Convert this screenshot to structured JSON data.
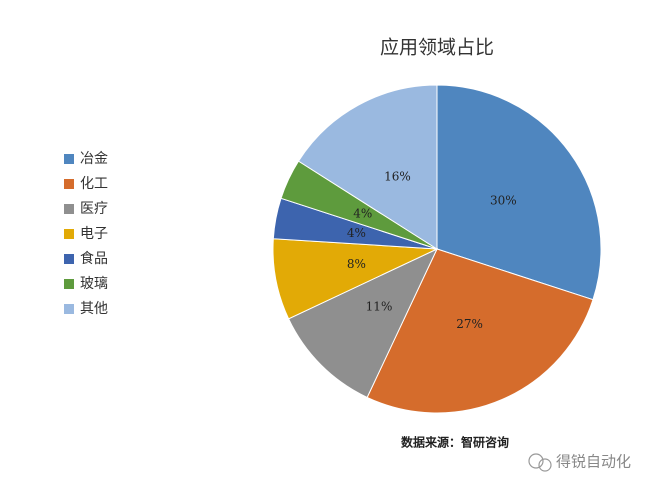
{
  "chart_data": {
    "type": "pie",
    "title": "应用领域占比",
    "categories": [
      "冶金",
      "化工",
      "医疗",
      "电子",
      "食品",
      "玻璃",
      "其他"
    ],
    "values": [
      30,
      27,
      11,
      8,
      4,
      4,
      16
    ],
    "value_labels": [
      "30%",
      "27%",
      "11%",
      "8%",
      "4%",
      "4%",
      "16%"
    ],
    "colors": [
      "#4f86bf",
      "#d56c2c",
      "#8f8f8f",
      "#e2aa06",
      "#3d64ae",
      "#5e9b3d",
      "#9ab9e0"
    ],
    "legend": "left",
    "source": "数据来源：智研咨询"
  },
  "watermark": "得锐自动化"
}
